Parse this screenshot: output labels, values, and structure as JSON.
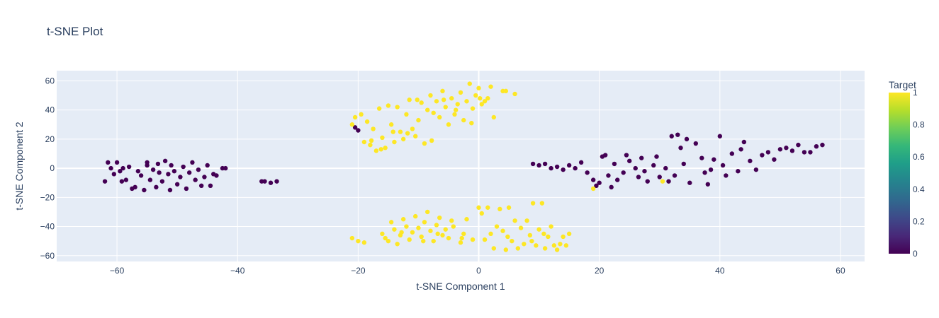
{
  "chart_data": {
    "type": "scatter",
    "title": "t-SNE Plot",
    "xlabel": "t-SNE Component 1",
    "ylabel": "t-SNE Component 2",
    "xlim": [
      -70,
      64
    ],
    "ylim": [
      -64,
      67
    ],
    "xticks": [
      -60,
      -40,
      -20,
      0,
      20,
      40,
      60
    ],
    "xtick_labels": [
      "−60",
      "−40",
      "−20",
      "0",
      "20",
      "40",
      "60"
    ],
    "yticks": [
      -60,
      -40,
      -20,
      0,
      20,
      40,
      60
    ],
    "yticks_labels": [
      "−60",
      "−40",
      "−20",
      "0",
      "20",
      "40",
      "60"
    ],
    "grid": true,
    "colorbar": {
      "title": "Target",
      "colorscale": "Viridis",
      "range": [
        0,
        1
      ],
      "ticks": [
        0,
        0.2,
        0.4,
        0.6,
        0.8,
        1
      ],
      "tick_labels": [
        "0",
        "0.2",
        "0.4",
        "0.6",
        "0.8",
        "1"
      ]
    },
    "colors": {
      "class_0": "#440154",
      "class_1": "#fde725",
      "plot_bg": "#e5ecf6",
      "grid": "#ffffff"
    },
    "points": [
      {
        "x": -62,
        "y": -9,
        "c": 0
      },
      {
        "x": -61.5,
        "y": 4,
        "c": 0
      },
      {
        "x": -61,
        "y": 0,
        "c": 0
      },
      {
        "x": -60.5,
        "y": -4,
        "c": 0
      },
      {
        "x": -60,
        "y": 4,
        "c": 0
      },
      {
        "x": -59.5,
        "y": -2,
        "c": 0
      },
      {
        "x": -59,
        "y": 0,
        "c": 0
      },
      {
        "x": -58.5,
        "y": -8,
        "c": 0
      },
      {
        "x": -58,
        "y": 1,
        "c": 0
      },
      {
        "x": -57.5,
        "y": -14,
        "c": 0
      },
      {
        "x": -57,
        "y": -13,
        "c": 0
      },
      {
        "x": -56.5,
        "y": -2,
        "c": 0
      },
      {
        "x": -56,
        "y": -5,
        "c": 0
      },
      {
        "x": -55.5,
        "y": -15,
        "c": 0
      },
      {
        "x": -55,
        "y": 2,
        "c": 0
      },
      {
        "x": -55,
        "y": 4,
        "c": 0
      },
      {
        "x": -54.5,
        "y": -8,
        "c": 0
      },
      {
        "x": -54,
        "y": -1,
        "c": 0
      },
      {
        "x": -53.5,
        "y": -13,
        "c": 0
      },
      {
        "x": -53,
        "y": -3,
        "c": 0
      },
      {
        "x": -52.5,
        "y": -9,
        "c": 0
      },
      {
        "x": -52,
        "y": 5,
        "c": 0
      },
      {
        "x": -51.5,
        "y": -4,
        "c": 0
      },
      {
        "x": -51,
        "y": 2,
        "c": 0
      },
      {
        "x": -50.5,
        "y": -2,
        "c": 0
      },
      {
        "x": -50,
        "y": -11,
        "c": 0
      },
      {
        "x": -49.5,
        "y": -6,
        "c": 0
      },
      {
        "x": -49,
        "y": 1,
        "c": 0
      },
      {
        "x": -48.5,
        "y": -14,
        "c": 0
      },
      {
        "x": -48,
        "y": -3,
        "c": 0
      },
      {
        "x": -47.5,
        "y": 4,
        "c": 0
      },
      {
        "x": -47,
        "y": -8,
        "c": 0
      },
      {
        "x": -46.5,
        "y": -1,
        "c": 0
      },
      {
        "x": -46,
        "y": -12,
        "c": 0
      },
      {
        "x": -45.5,
        "y": -6,
        "c": 0
      },
      {
        "x": -45,
        "y": 2,
        "c": 0
      },
      {
        "x": -44.5,
        "y": -12,
        "c": 0
      },
      {
        "x": -44,
        "y": -4,
        "c": 0
      },
      {
        "x": -43.5,
        "y": -5,
        "c": 0
      },
      {
        "x": -42.5,
        "y": 0,
        "c": 0
      },
      {
        "x": -42,
        "y": 0,
        "c": 0
      },
      {
        "x": -59.2,
        "y": -9,
        "c": 0
      },
      {
        "x": -53.2,
        "y": 3,
        "c": 0
      },
      {
        "x": -51.2,
        "y": -15,
        "c": 0
      },
      {
        "x": -36,
        "y": -9,
        "c": 0
      },
      {
        "x": -35.5,
        "y": -9,
        "c": 0
      },
      {
        "x": -34.5,
        "y": -10,
        "c": 0
      },
      {
        "x": -33.5,
        "y": -9,
        "c": 0
      },
      {
        "x": -20.5,
        "y": 28,
        "c": 0
      },
      {
        "x": -20,
        "y": 26,
        "c": 0
      },
      {
        "x": 9,
        "y": 3,
        "c": 0
      },
      {
        "x": 10,
        "y": 2,
        "c": 0
      },
      {
        "x": 11,
        "y": 3,
        "c": 0
      },
      {
        "x": 12,
        "y": 0,
        "c": 0
      },
      {
        "x": 13,
        "y": 1,
        "c": 0
      },
      {
        "x": 14,
        "y": -1,
        "c": 0
      },
      {
        "x": 15,
        "y": 2,
        "c": 0
      },
      {
        "x": 16,
        "y": 0,
        "c": 0
      },
      {
        "x": 17,
        "y": 4,
        "c": 0
      },
      {
        "x": 18,
        "y": -3,
        "c": 0
      },
      {
        "x": 19,
        "y": -8,
        "c": 0
      },
      {
        "x": 19.5,
        "y": -12,
        "c": 0
      },
      {
        "x": 20,
        "y": -10,
        "c": 0
      },
      {
        "x": 20.5,
        "y": 8,
        "c": 0
      },
      {
        "x": 21,
        "y": 9,
        "c": 0
      },
      {
        "x": 21.5,
        "y": -5,
        "c": 0
      },
      {
        "x": 22,
        "y": -13,
        "c": 0
      },
      {
        "x": 23,
        "y": -8,
        "c": 0
      },
      {
        "x": 24,
        "y": -3,
        "c": 0
      },
      {
        "x": 25,
        "y": 5,
        "c": 0
      },
      {
        "x": 26,
        "y": 0,
        "c": 0
      },
      {
        "x": 27,
        "y": 7,
        "c": 0
      },
      {
        "x": 28,
        "y": -9,
        "c": 0
      },
      {
        "x": 29,
        "y": 2,
        "c": 0
      },
      {
        "x": 30,
        "y": -6,
        "c": 0
      },
      {
        "x": 31,
        "y": 0,
        "c": 0
      },
      {
        "x": 32,
        "y": 22,
        "c": 0
      },
      {
        "x": 32.5,
        "y": -5,
        "c": 0
      },
      {
        "x": 33,
        "y": 23,
        "c": 0
      },
      {
        "x": 34,
        "y": 3,
        "c": 0
      },
      {
        "x": 34.5,
        "y": 20,
        "c": 0
      },
      {
        "x": 35,
        "y": -10,
        "c": 0
      },
      {
        "x": 36,
        "y": 17,
        "c": 0
      },
      {
        "x": 37,
        "y": 7,
        "c": 0
      },
      {
        "x": 37.5,
        "y": -3,
        "c": 0
      },
      {
        "x": 38,
        "y": -11,
        "c": 0
      },
      {
        "x": 39,
        "y": 6,
        "c": 0
      },
      {
        "x": 40,
        "y": 22,
        "c": 0
      },
      {
        "x": 40.5,
        "y": 2,
        "c": 0
      },
      {
        "x": 41,
        "y": -5,
        "c": 0
      },
      {
        "x": 42,
        "y": 10,
        "c": 0
      },
      {
        "x": 43,
        "y": -2,
        "c": 0
      },
      {
        "x": 44,
        "y": 18,
        "c": 0
      },
      {
        "x": 45,
        "y": 5,
        "c": 0
      },
      {
        "x": 46,
        "y": -1,
        "c": 0
      },
      {
        "x": 47,
        "y": 9,
        "c": 0
      },
      {
        "x": 48,
        "y": 11,
        "c": 0
      },
      {
        "x": 49,
        "y": 6,
        "c": 0
      },
      {
        "x": 50,
        "y": 13,
        "c": 0
      },
      {
        "x": 51,
        "y": 14,
        "c": 0
      },
      {
        "x": 52,
        "y": 12,
        "c": 0
      },
      {
        "x": 53,
        "y": 16,
        "c": 0
      },
      {
        "x": 54,
        "y": 11,
        "c": 0
      },
      {
        "x": 55,
        "y": 11,
        "c": 0
      },
      {
        "x": 56,
        "y": 15,
        "c": 0
      },
      {
        "x": 57,
        "y": 16,
        "c": 0
      },
      {
        "x": 22.5,
        "y": 3,
        "c": 0
      },
      {
        "x": 26.5,
        "y": -6,
        "c": 0
      },
      {
        "x": 33.5,
        "y": 14,
        "c": 0
      },
      {
        "x": 43.5,
        "y": 13,
        "c": 0
      },
      {
        "x": 38.5,
        "y": -1,
        "c": 0
      },
      {
        "x": 29.5,
        "y": 8,
        "c": 0
      },
      {
        "x": 31.5,
        "y": -9,
        "c": 0
      },
      {
        "x": 27.5,
        "y": -2,
        "c": 0
      },
      {
        "x": 24.5,
        "y": 9,
        "c": 0
      },
      {
        "x": -21,
        "y": 30,
        "c": 1
      },
      {
        "x": -20.5,
        "y": 35,
        "c": 1
      },
      {
        "x": -19.5,
        "y": 37,
        "c": 1
      },
      {
        "x": -19,
        "y": 18,
        "c": 1
      },
      {
        "x": -18.5,
        "y": 32,
        "c": 1
      },
      {
        "x": -18,
        "y": 16,
        "c": 1
      },
      {
        "x": -17.5,
        "y": 27,
        "c": 1
      },
      {
        "x": -17,
        "y": 12,
        "c": 1
      },
      {
        "x": -16.5,
        "y": 41,
        "c": 1
      },
      {
        "x": -16,
        "y": 21,
        "c": 1
      },
      {
        "x": -15.5,
        "y": 14,
        "c": 1
      },
      {
        "x": -15,
        "y": 43,
        "c": 1
      },
      {
        "x": -14.5,
        "y": 30,
        "c": 1
      },
      {
        "x": -14,
        "y": 18,
        "c": 1
      },
      {
        "x": -13.5,
        "y": 42,
        "c": 1
      },
      {
        "x": -13,
        "y": 25,
        "c": 1
      },
      {
        "x": -12.5,
        "y": 20,
        "c": 1
      },
      {
        "x": -12,
        "y": 37,
        "c": 1
      },
      {
        "x": -11.5,
        "y": 47,
        "c": 1
      },
      {
        "x": -11,
        "y": 27,
        "c": 1
      },
      {
        "x": -10.5,
        "y": 22,
        "c": 1
      },
      {
        "x": -10,
        "y": 33,
        "c": 1
      },
      {
        "x": -9.5,
        "y": 45,
        "c": 1
      },
      {
        "x": -9,
        "y": 17,
        "c": 1
      },
      {
        "x": -8.5,
        "y": 40,
        "c": 1
      },
      {
        "x": -8,
        "y": 50,
        "c": 1
      },
      {
        "x": -7.5,
        "y": 38,
        "c": 1
      },
      {
        "x": -7,
        "y": 46,
        "c": 1
      },
      {
        "x": -6.5,
        "y": 35,
        "c": 1
      },
      {
        "x": -6,
        "y": 53,
        "c": 1
      },
      {
        "x": -5.5,
        "y": 42,
        "c": 1
      },
      {
        "x": -5,
        "y": 30,
        "c": 1
      },
      {
        "x": -4.5,
        "y": 48,
        "c": 1
      },
      {
        "x": -4,
        "y": 37,
        "c": 1
      },
      {
        "x": -3.5,
        "y": 44,
        "c": 1
      },
      {
        "x": -3,
        "y": 52,
        "c": 1
      },
      {
        "x": -2.5,
        "y": 33,
        "c": 1
      },
      {
        "x": -2,
        "y": 46,
        "c": 1
      },
      {
        "x": -1.5,
        "y": 58,
        "c": 1
      },
      {
        "x": -1,
        "y": 41,
        "c": 1
      },
      {
        "x": -0.5,
        "y": 50,
        "c": 1
      },
      {
        "x": 0,
        "y": 55,
        "c": 1
      },
      {
        "x": 0.5,
        "y": 44,
        "c": 1
      },
      {
        "x": 1,
        "y": 46,
        "c": 1
      },
      {
        "x": 1.5,
        "y": 48,
        "c": 1
      },
      {
        "x": 2,
        "y": 56,
        "c": 1
      },
      {
        "x": 2.5,
        "y": 35,
        "c": 1
      },
      {
        "x": 4,
        "y": 53,
        "c": 1
      },
      {
        "x": 4.5,
        "y": 53,
        "c": 1
      },
      {
        "x": 6,
        "y": 51,
        "c": 1
      },
      {
        "x": -17.8,
        "y": 19,
        "c": 1
      },
      {
        "x": -16.2,
        "y": 13,
        "c": 1
      },
      {
        "x": -14.2,
        "y": 25,
        "c": 1
      },
      {
        "x": -11.8,
        "y": 24,
        "c": 1
      },
      {
        "x": -10.2,
        "y": 47,
        "c": 1
      },
      {
        "x": -7.8,
        "y": 19,
        "c": 1
      },
      {
        "x": -5.8,
        "y": 47,
        "c": 1
      },
      {
        "x": -3.8,
        "y": 40,
        "c": 1
      },
      {
        "x": -1.2,
        "y": 31,
        "c": 1
      },
      {
        "x": 0.2,
        "y": 48,
        "c": 1
      },
      {
        "x": -21,
        "y": -48,
        "c": 1
      },
      {
        "x": -20,
        "y": -50,
        "c": 1
      },
      {
        "x": -19,
        "y": -51,
        "c": 1
      },
      {
        "x": -16,
        "y": -45,
        "c": 1
      },
      {
        "x": -15.5,
        "y": -48,
        "c": 1
      },
      {
        "x": -15,
        "y": -50,
        "c": 1
      },
      {
        "x": -14.5,
        "y": -37,
        "c": 1
      },
      {
        "x": -14,
        "y": -42,
        "c": 1
      },
      {
        "x": -13.5,
        "y": -52,
        "c": 1
      },
      {
        "x": -13,
        "y": -46,
        "c": 1
      },
      {
        "x": -12.5,
        "y": -35,
        "c": 1
      },
      {
        "x": -12,
        "y": -40,
        "c": 1
      },
      {
        "x": -11.5,
        "y": -49,
        "c": 1
      },
      {
        "x": -11,
        "y": -44,
        "c": 1
      },
      {
        "x": -10.5,
        "y": -33,
        "c": 1
      },
      {
        "x": -10,
        "y": -41,
        "c": 1
      },
      {
        "x": -9.5,
        "y": -47,
        "c": 1
      },
      {
        "x": -9,
        "y": -37,
        "c": 1
      },
      {
        "x": -8.5,
        "y": -30,
        "c": 1
      },
      {
        "x": -8,
        "y": -43,
        "c": 1
      },
      {
        "x": -7.5,
        "y": -50,
        "c": 1
      },
      {
        "x": -7,
        "y": -39,
        "c": 1
      },
      {
        "x": -6.5,
        "y": -34,
        "c": 1
      },
      {
        "x": -6,
        "y": -46,
        "c": 1
      },
      {
        "x": -5.5,
        "y": -42,
        "c": 1
      },
      {
        "x": -5,
        "y": -48,
        "c": 1
      },
      {
        "x": -4.5,
        "y": -36,
        "c": 1
      },
      {
        "x": -3,
        "y": -51,
        "c": 1
      },
      {
        "x": -2.5,
        "y": -45,
        "c": 1
      },
      {
        "x": -2,
        "y": -35,
        "c": 1
      },
      {
        "x": -1,
        "y": -49,
        "c": 1
      },
      {
        "x": 0,
        "y": -27,
        "c": 1
      },
      {
        "x": 0.5,
        "y": -31,
        "c": 1
      },
      {
        "x": 1,
        "y": -49,
        "c": 1
      },
      {
        "x": 1.5,
        "y": -27,
        "c": 1
      },
      {
        "x": 2,
        "y": -45,
        "c": 1
      },
      {
        "x": 2.5,
        "y": -55,
        "c": 1
      },
      {
        "x": 3,
        "y": -40,
        "c": 1
      },
      {
        "x": 3.5,
        "y": -28,
        "c": 1
      },
      {
        "x": 4,
        "y": -43,
        "c": 1
      },
      {
        "x": 4.5,
        "y": -56,
        "c": 1
      },
      {
        "x": 5,
        "y": -27,
        "c": 1
      },
      {
        "x": 5.5,
        "y": -50,
        "c": 1
      },
      {
        "x": 6,
        "y": -36,
        "c": 1
      },
      {
        "x": 6.5,
        "y": -55,
        "c": 1
      },
      {
        "x": 7,
        "y": -41,
        "c": 1
      },
      {
        "x": 7.5,
        "y": -52,
        "c": 1
      },
      {
        "x": 8,
        "y": -36,
        "c": 1
      },
      {
        "x": 8.5,
        "y": -46,
        "c": 1
      },
      {
        "x": 9,
        "y": -24,
        "c": 1
      },
      {
        "x": 9.5,
        "y": -53,
        "c": 1
      },
      {
        "x": 10,
        "y": -42,
        "c": 1
      },
      {
        "x": 10.5,
        "y": -24,
        "c": 1
      },
      {
        "x": 11,
        "y": -55,
        "c": 1
      },
      {
        "x": 11.5,
        "y": -47,
        "c": 1
      },
      {
        "x": 12,
        "y": -40,
        "c": 1
      },
      {
        "x": 12.5,
        "y": -53,
        "c": 1
      },
      {
        "x": 13,
        "y": -56,
        "c": 1
      },
      {
        "x": 13.5,
        "y": -52,
        "c": 1
      },
      {
        "x": 14,
        "y": -47,
        "c": 1
      },
      {
        "x": 14.5,
        "y": -53,
        "c": 1
      },
      {
        "x": 15,
        "y": -45,
        "c": 1
      },
      {
        "x": -12.8,
        "y": -44,
        "c": 1
      },
      {
        "x": -9.2,
        "y": -50,
        "c": 1
      },
      {
        "x": -6.8,
        "y": -45,
        "c": 1
      },
      {
        "x": -4.2,
        "y": -40,
        "c": 1
      },
      {
        "x": -2.8,
        "y": -48,
        "c": 1
      },
      {
        "x": 4.8,
        "y": -47,
        "c": 1
      },
      {
        "x": 8.8,
        "y": -50,
        "c": 1
      },
      {
        "x": 10.8,
        "y": -45,
        "c": 1
      },
      {
        "x": 19,
        "y": -14,
        "c": 1
      },
      {
        "x": 30.5,
        "y": -9,
        "c": 1
      }
    ]
  }
}
